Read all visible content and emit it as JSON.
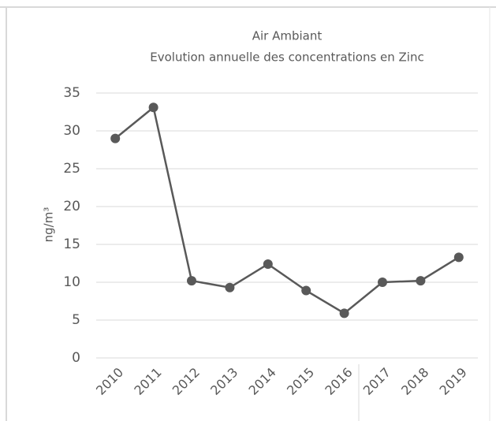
{
  "chart_data": {
    "type": "line",
    "title": "Air Ambiant",
    "subtitle": "Evolution annuelle des concentrations en Zinc",
    "y_label": "ng/m³",
    "categories": [
      "2010",
      "2011",
      "2012",
      "2013",
      "2014",
      "2015",
      "2016",
      "2017",
      "2018",
      "2019"
    ],
    "values": [
      29.0,
      33.1,
      10.2,
      9.3,
      12.4,
      8.9,
      5.9,
      10.0,
      10.2,
      13.3
    ],
    "color": "#595959",
    "ylim": [
      0,
      35
    ],
    "yticks": [
      0,
      5,
      10,
      15,
      20,
      25,
      30,
      35
    ],
    "grid": true
  }
}
